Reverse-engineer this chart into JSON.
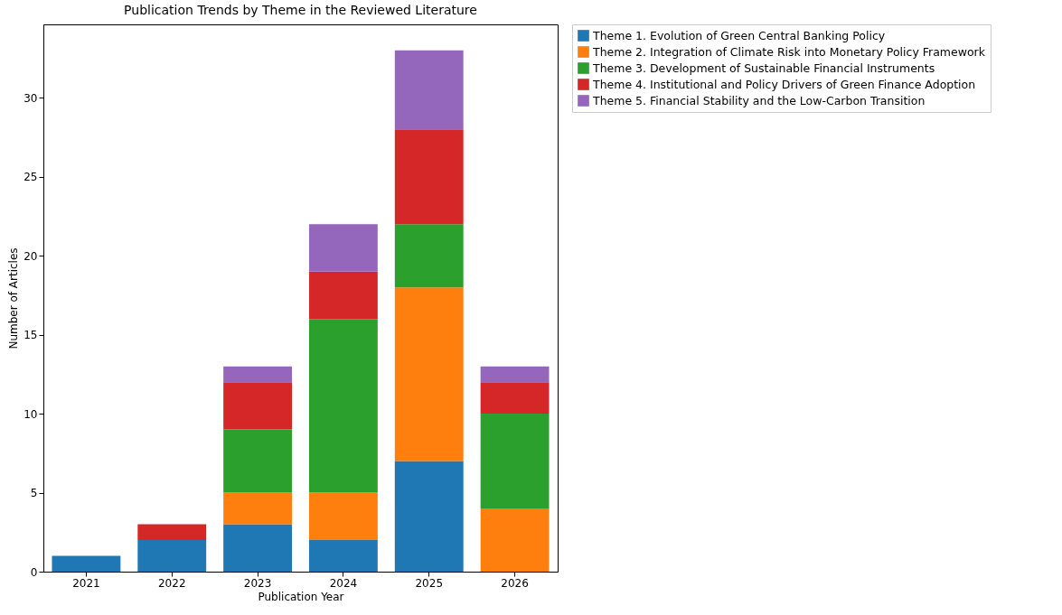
{
  "chart_data": {
    "type": "bar",
    "title": "Publication Trends by Theme in the Reviewed Literature",
    "xlabel": "Publication Year",
    "ylabel": "Number of Articles",
    "categories": [
      "2021",
      "2022",
      "2023",
      "2024",
      "2025",
      "2026"
    ],
    "stacked": true,
    "legend": "top right",
    "ylim": [
      0,
      34.65
    ],
    "yticks": [
      0,
      5,
      10,
      15,
      20,
      25,
      30
    ],
    "series": [
      {
        "name": "Theme 1. Evolution of Green Central Banking Policy",
        "color": "#1f77b4",
        "values": [
          1,
          2,
          3,
          2,
          7,
          0
        ]
      },
      {
        "name": "Theme 2. Integration of Climate Risk into Monetary Policy Framework",
        "color": "#ff7f0e",
        "values": [
          0,
          0,
          2,
          3,
          11,
          4
        ]
      },
      {
        "name": "Theme 3. Development of Sustainable Financial Instruments",
        "color": "#2ca02c",
        "values": [
          0,
          0,
          4,
          11,
          4,
          6
        ]
      },
      {
        "name": "Theme 4. Institutional and Policy Drivers of Green Finance Adoption",
        "color": "#d62728",
        "values": [
          0,
          1,
          3,
          3,
          6,
          2
        ]
      },
      {
        "name": "Theme 5. Financial Stability and the Low-Carbon Transition",
        "color": "#9467bd",
        "values": [
          0,
          0,
          1,
          3,
          5,
          1
        ]
      }
    ]
  }
}
